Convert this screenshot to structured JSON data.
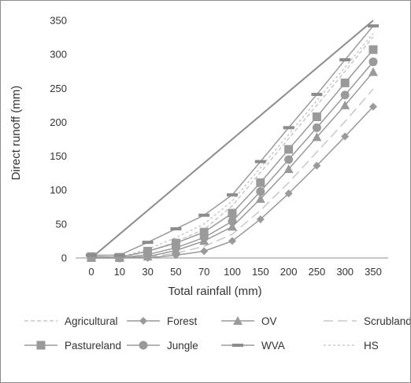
{
  "chart_data": {
    "type": "line",
    "xlabel": "Total rainfall (mm)",
    "ylabel": "Direct runoff (mm)",
    "categories": [
      "0",
      "10",
      "30",
      "50",
      "70",
      "100",
      "150",
      "200",
      "250",
      "300",
      "350"
    ],
    "ylim": [
      0,
      350
    ],
    "yticks": [
      0,
      50,
      100,
      150,
      200,
      250,
      300,
      350
    ],
    "grid": false,
    "legend_position": "bottom",
    "reference_line": {
      "from": [
        0,
        0
      ],
      "to": [
        350,
        350
      ],
      "color": "#8c8c8c"
    },
    "series": [
      {
        "name": "Agricultural",
        "style": "dashed-light",
        "color": "#c8c8c8",
        "values": [
          0,
          1,
          9,
          24,
          42,
          77,
          126,
          176,
          225,
          275,
          326
        ]
      },
      {
        "name": "Forest",
        "style": "solid-diamond",
        "color": "#9a9a9a",
        "values": [
          0,
          0,
          0,
          4,
          10,
          25,
          57,
          95,
          136,
          179,
          223
        ]
      },
      {
        "name": "OV",
        "style": "solid-triangle",
        "color": "#9a9a9a",
        "values": [
          0,
          0,
          2,
          11,
          25,
          46,
          87,
          131,
          178,
          225,
          274
        ]
      },
      {
        "name": "Scrubland",
        "style": "dashed-long",
        "color": "#c8c8c8",
        "values": [
          0,
          0,
          1,
          7,
          17,
          35,
          70,
          111,
          156,
          201,
          249
        ]
      },
      {
        "name": "Pastureland",
        "style": "solid-square",
        "color": "#9a9a9a",
        "values": [
          2,
          1,
          10,
          22,
          38,
          66,
          111,
          160,
          208,
          258,
          307
        ]
      },
      {
        "name": "Jungle",
        "style": "solid-circle",
        "color": "#9a9a9a",
        "values": [
          1,
          0,
          5,
          15,
          30,
          54,
          98,
          145,
          192,
          240,
          289
        ]
      },
      {
        "name": "WVA",
        "style": "solid-dash-marker",
        "color": "#9a9a9a",
        "values": [
          4,
          4,
          23,
          43,
          63,
          93,
          142,
          192,
          241,
          292,
          342
        ]
      },
      {
        "name": "HS",
        "style": "dashed-short",
        "color": "#c8c8c8",
        "values": [
          0,
          1,
          13,
          30,
          50,
          84,
          133,
          182,
          232,
          281,
          331
        ]
      }
    ]
  }
}
